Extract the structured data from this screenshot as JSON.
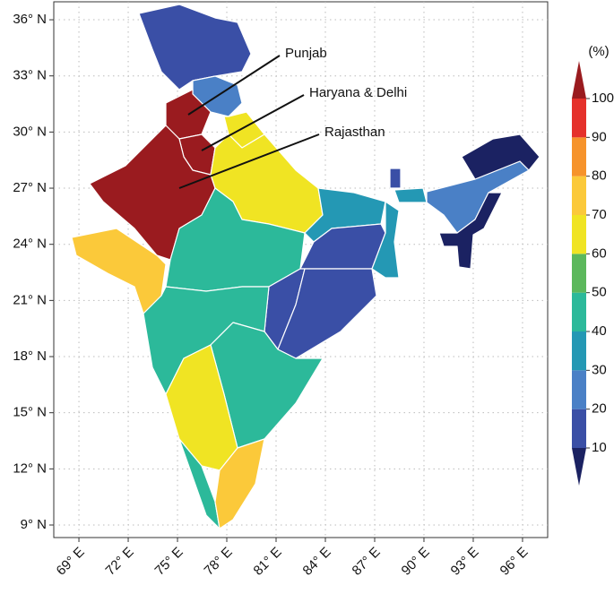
{
  "chart_data": {
    "type": "choropleth",
    "xlim": [
      67.47,
      97.53
    ],
    "ylim": [
      8.33,
      36.96
    ],
    "grid": true,
    "xticks": [
      {
        "value": 69,
        "label": "69° E"
      },
      {
        "value": 72,
        "label": "72° E"
      },
      {
        "value": 75,
        "label": "75° E"
      },
      {
        "value": 78,
        "label": "78° E"
      },
      {
        "value": 81,
        "label": "81° E"
      },
      {
        "value": 84,
        "label": "84° E"
      },
      {
        "value": 87,
        "label": "87° E"
      },
      {
        "value": 90,
        "label": "90° E"
      },
      {
        "value": 93,
        "label": "93° E"
      },
      {
        "value": 96,
        "label": "96° E"
      }
    ],
    "yticks": [
      {
        "value": 9,
        "label": "9° N"
      },
      {
        "value": 12,
        "label": "12° N"
      },
      {
        "value": 15,
        "label": "15° N"
      },
      {
        "value": 18,
        "label": "18° N"
      },
      {
        "value": 21,
        "label": "21° N"
      },
      {
        "value": 24,
        "label": "24° N"
      },
      {
        "value": 27,
        "label": "27° N"
      },
      {
        "value": 30,
        "label": "30° N"
      },
      {
        "value": 33,
        "label": "33° N"
      },
      {
        "value": 36,
        "label": "36° N"
      }
    ],
    "colorbar": {
      "label": "(%)",
      "ticks": [
        10,
        20,
        30,
        40,
        50,
        60,
        70,
        80,
        90,
        100
      ],
      "colors": [
        "#1b2262",
        "#3a4fa6",
        "#4a80c6",
        "#2498b4",
        "#2cb99a",
        "#5cb85c",
        "#f0e423",
        "#fbc93a",
        "#f6932b",
        "#e5312b",
        "#9a1b1f"
      ]
    },
    "regions": [
      15,
      25,
      110,
      105,
      65,
      110,
      65,
      75,
      45,
      35,
      15,
      35,
      15,
      15,
      45,
      45,
      65,
      45,
      75,
      15,
      35,
      25,
      5,
      5
    ],
    "annotations": [
      "Punjab",
      "Haryana & Delhi",
      "Rajasthan"
    ]
  }
}
